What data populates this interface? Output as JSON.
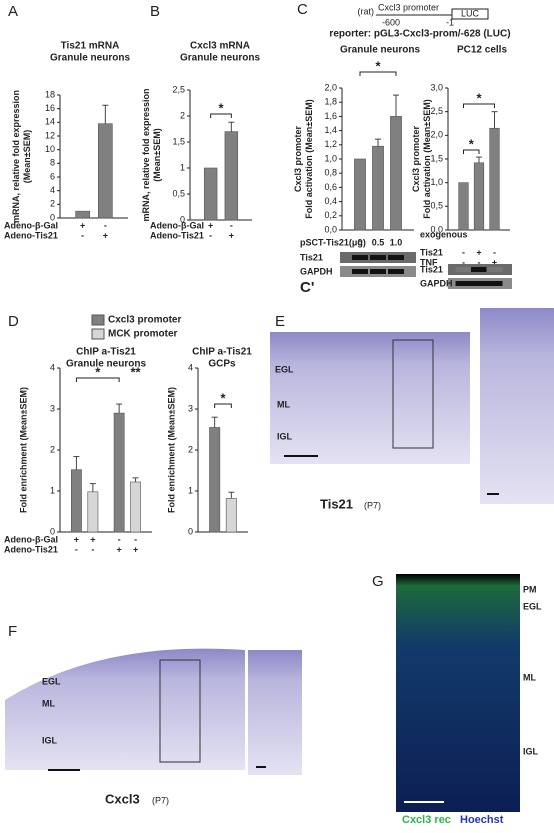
{
  "panels": [
    "A",
    "B",
    "C",
    "D",
    "E",
    "F",
    "G"
  ],
  "reporter": {
    "species": "(rat)",
    "promoter": "Cxcl3 promoter",
    "gene": "LUC",
    "start": "-600",
    "end": "-1",
    "name": "reporter: pGL3-Cxcl3-prom/-628 (LUC)"
  },
  "chart_data": [
    {
      "type": "bar",
      "title": [
        "Tis21 mRNA",
        "Granule neurons"
      ],
      "ylabel": [
        "mRNA, relative fold expression",
        "(Mean±SEM)"
      ],
      "values": [
        1,
        13.8
      ],
      "errors": [
        null,
        2.7
      ],
      "color": "#808080",
      "ylim": [
        0,
        18
      ],
      "yticks": [
        0,
        2,
        4,
        6,
        8,
        10,
        12,
        14,
        16,
        18
      ],
      "conditions": [
        {
          "label": "Adeno-β-Gal",
          "signs": [
            "+",
            "-"
          ]
        },
        {
          "label": "Adeno-Tis21",
          "signs": [
            "-",
            "+"
          ]
        }
      ],
      "annotations": []
    },
    {
      "type": "bar",
      "title": [
        "Cxcl3 mRNA",
        "Granule neurons"
      ],
      "ylabel": [
        "mRNA, relative fold expression",
        "(Mean±SEM)"
      ],
      "values": [
        1,
        1.7
      ],
      "errors": [
        null,
        0.18
      ],
      "color": "#808080",
      "ylim": [
        0,
        2.5
      ],
      "yticks": [
        0,
        {
          "value": 0.5,
          "label": "0,5"
        },
        1,
        {
          "value": 1.5,
          "label": "1,5"
        },
        2,
        {
          "value": 2.5,
          "label": "2,5"
        }
      ],
      "conditions": [
        {
          "label": "Adeno-β-Gal",
          "signs": [
            "+",
            "-"
          ]
        },
        {
          "label": "Adeno-Tis21",
          "signs": [
            "-",
            "+"
          ]
        }
      ],
      "annotations": [
        "*"
      ]
    },
    {
      "type": "bar",
      "title": [
        "Granule neurons"
      ],
      "ylabel": [
        "Cxcl3 promoter",
        "Fold activation (Mean±SEM)"
      ],
      "values": [
        1,
        1.18,
        1.6
      ],
      "errors": [
        null,
        0.1,
        0.3
      ],
      "color": "#808080",
      "ylim": [
        0,
        2
      ],
      "yticks": [
        {
          "value": 0,
          "label": "0,0"
        },
        {
          "value": 0.2,
          "label": "0,2"
        },
        {
          "value": 0.4,
          "label": "0,4"
        },
        {
          "value": 0.6,
          "label": "0,6"
        },
        {
          "value": 0.8,
          "label": "0,8"
        },
        {
          "value": 1,
          "label": "1,0"
        },
        {
          "value": 1.2,
          "label": "1,2"
        },
        {
          "value": 1.4,
          "label": "1,4"
        },
        {
          "value": 1.6,
          "label": "1,6"
        },
        {
          "value": 1.8,
          "label": "1,8"
        },
        {
          "value": 2,
          "label": "2,0"
        }
      ],
      "conditions": [
        {
          "label": "pSCT-Tis21(μg)",
          "signs": [
            "0",
            "0.5",
            "1.0"
          ]
        }
      ],
      "annotations": [
        "*"
      ],
      "blot_labels": [
        "Tis21",
        "GAPDH"
      ],
      "blot_panel": "C'"
    },
    {
      "type": "bar",
      "title": [
        "PC12 cells"
      ],
      "ylabel": [
        "Cxcl3  promoter",
        "Fold activation (Mean±SEM)"
      ],
      "values": [
        1,
        1.42,
        2.15
      ],
      "errors": [
        null,
        0.12,
        0.35
      ],
      "color": "#808080",
      "ylim": [
        0,
        3
      ],
      "yticks": [
        {
          "value": 0,
          "label": "0,0"
        },
        {
          "value": 0.5,
          "label": "0,5"
        },
        {
          "value": 1,
          "label": "1,0"
        },
        {
          "value": 1.5,
          "label": "1,5"
        },
        {
          "value": 2,
          "label": "2,0"
        },
        {
          "value": 2.5,
          "label": "2,5"
        },
        {
          "value": 3,
          "label": "3,0"
        }
      ],
      "conditions_note": "exogenous",
      "conditions": [
        {
          "label": "Tis21",
          "signs": [
            "-",
            "+",
            "-"
          ]
        },
        {
          "label": "TNF",
          "signs": [
            "-",
            "-",
            "+"
          ]
        }
      ],
      "annotations": [
        "*",
        "*"
      ],
      "blot_labels": [
        "Tis21",
        "GAPDH"
      ]
    },
    {
      "type": "grouped-bar",
      "title": [
        "ChIP a-Tis21",
        "Granule neurons"
      ],
      "ylabel": [
        "Fold enrichment  (Mean±SEM)"
      ],
      "categories": [
        null,
        null
      ],
      "series": [
        {
          "name": "Cxcl3 promoter",
          "color": "#808080",
          "values": [
            1.52,
            2.9
          ],
          "errors": [
            0.32,
            0.22
          ]
        },
        {
          "name": "MCK promoter",
          "color": "#d6d6d6",
          "values": [
            0.98,
            1.22
          ],
          "errors": [
            0.2,
            0.1
          ]
        }
      ],
      "legend": "top",
      "ylim": [
        0,
        4
      ],
      "yticks": [
        0,
        1,
        2,
        3,
        4
      ],
      "conditions": [
        {
          "label": "Adeno-β-Gal",
          "signs": [
            "+",
            "+",
            "-",
            "-"
          ]
        },
        {
          "label": "Adeno-Tis21",
          "signs": [
            "-",
            "-",
            "+",
            "+"
          ]
        }
      ],
      "annotations": [
        "*",
        "**"
      ]
    },
    {
      "type": "grouped-bar",
      "title": [
        "ChIP a-Tis21",
        "GCPs"
      ],
      "ylabel": [
        "Fold enrichment  (Mean±SEM)"
      ],
      "categories": [
        null
      ],
      "series": [
        {
          "name": "Cxcl3 promoter",
          "color": "#808080",
          "values": [
            2.55
          ],
          "errors": [
            0.25
          ]
        },
        {
          "name": "MCK promoter",
          "color": "#d6d6d6",
          "values": [
            0.82
          ],
          "errors": [
            0.15
          ]
        }
      ],
      "ylim": [
        0,
        4
      ],
      "yticks": [
        0,
        1,
        2,
        3,
        4
      ],
      "conditions": [],
      "annotations": [
        "*"
      ]
    }
  ],
  "images": [
    {
      "labels": [
        "EGL",
        "ML",
        "IGL"
      ],
      "caption": "Tis21",
      "stage": "(P7)"
    },
    {
      "labels": [
        "EGL",
        "ML",
        "IGL"
      ],
      "caption": "Cxcl3",
      "stage": "(P7)"
    },
    {
      "labels": [
        "PM",
        "EGL",
        "ML",
        "IGL"
      ],
      "caption": "Cxcl3 rec",
      "caption2": "Hoechst"
    }
  ]
}
